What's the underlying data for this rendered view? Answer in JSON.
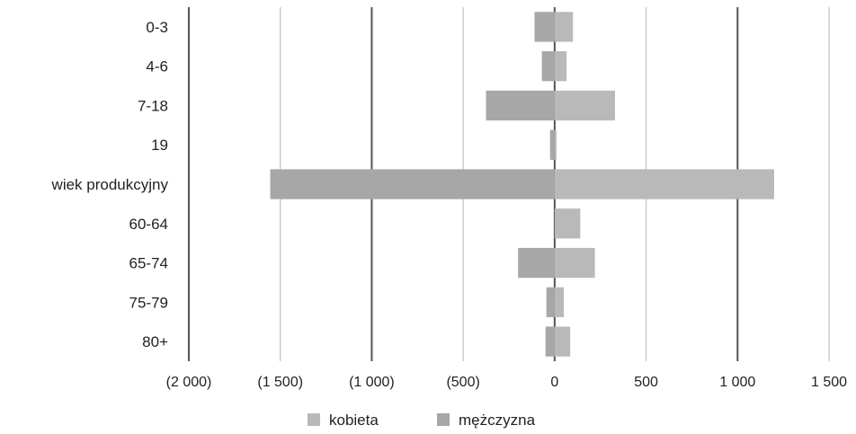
{
  "chart_data": {
    "type": "bar",
    "orientation": "horizontal",
    "categories": [
      "0-3",
      "4-6",
      "7-18",
      "19",
      "wiek produkcyjny",
      "60-64",
      "65-74",
      "75-79",
      "80+"
    ],
    "series": [
      {
        "name": "kobieta",
        "values": [
          100,
          65,
          330,
          10,
          1200,
          140,
          220,
          50,
          85
        ],
        "color": "#b9b9b9"
      },
      {
        "name": "mężczyzna",
        "values": [
          -110,
          -70,
          -375,
          -25,
          -1555,
          0,
          -200,
          -45,
          -50
        ],
        "color": "#a7a7a7"
      }
    ],
    "x_ticks": [
      -2000,
      -1500,
      -1000,
      -500,
      0,
      500,
      1000,
      1500
    ],
    "x_tick_labels": [
      "(2 000)",
      "(1 500)",
      "(1 000)",
      "(500)",
      "0",
      "500",
      "1 000",
      "1 500"
    ],
    "xlim": [
      -2000,
      1500
    ],
    "grid": true,
    "legend_position": "bottom"
  }
}
